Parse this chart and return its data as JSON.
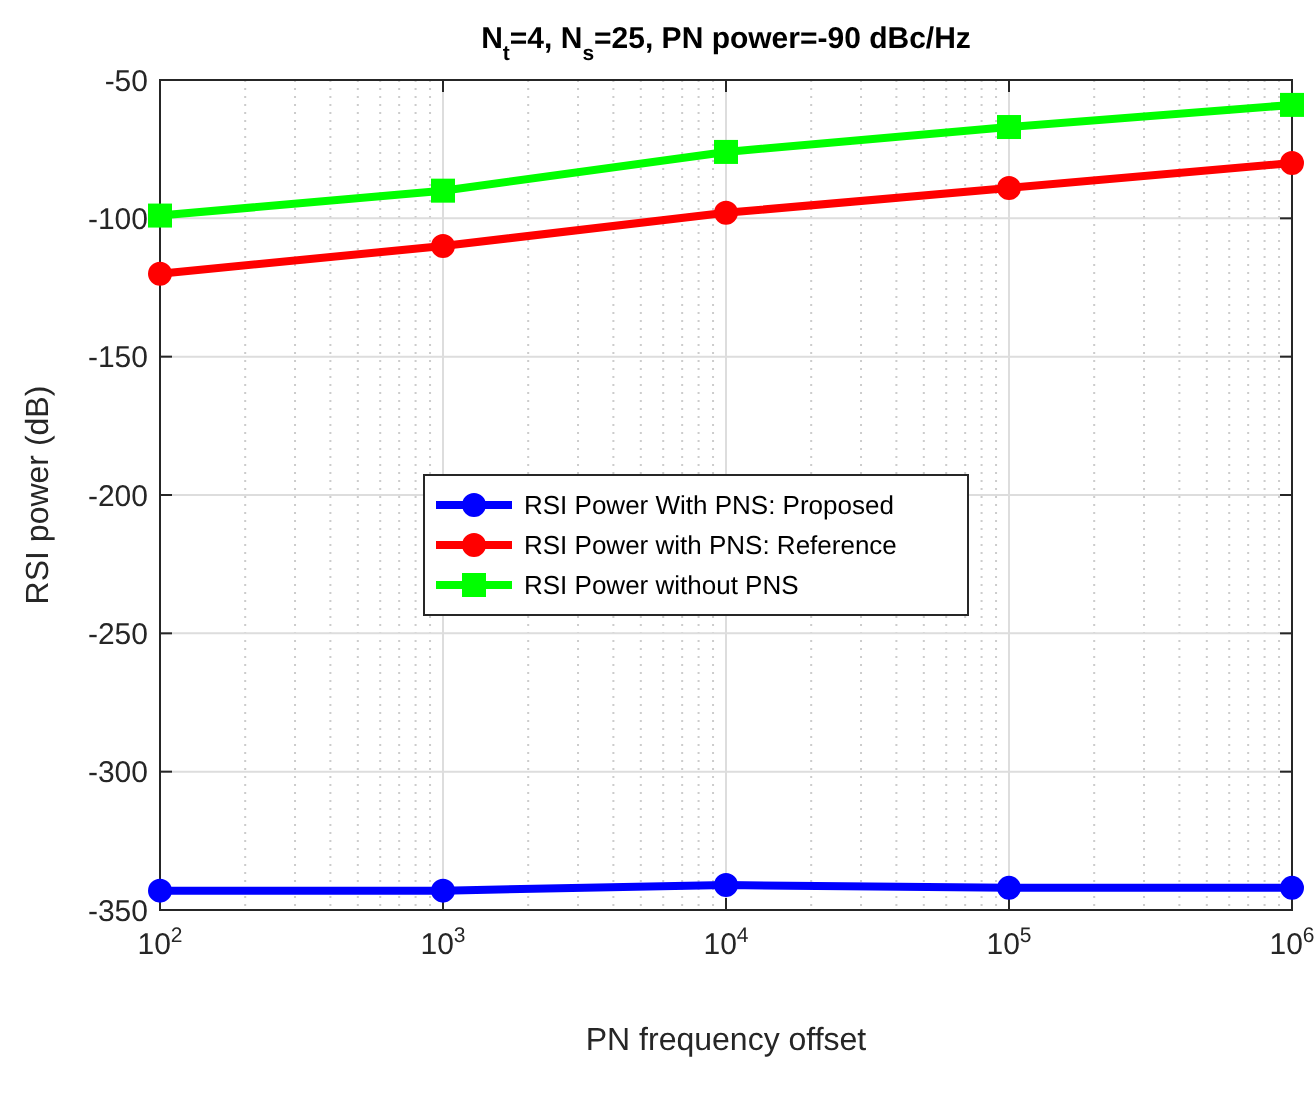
{
  "chart_data": {
    "type": "line",
    "title": "N$_{t}$=4, N$_{s}$=25, PN power=-90 dBc/Hz",
    "xlabel": "PN frequency offset",
    "ylabel": "RSI power (dB)",
    "x": [
      100,
      1000,
      10000,
      100000,
      1000000
    ],
    "log": "x",
    "xlim": [
      100,
      1000000
    ],
    "xticks": [
      {
        "value": 100,
        "label": "10$^{2}$"
      },
      {
        "value": 1000,
        "label": "10$^{3}$"
      },
      {
        "value": 10000,
        "label": "10$^{4}$"
      },
      {
        "value": 100000,
        "label": "10$^{5}$"
      },
      {
        "value": 1000000,
        "label": "10$^{6}$"
      }
    ],
    "ylim": [
      -350,
      -50
    ],
    "yticks": [
      -350,
      -300,
      -250,
      -200,
      -150,
      -100,
      -50
    ],
    "grid": true,
    "legend": "center",
    "line_style": "solid",
    "series": [
      {
        "name": "RSI Power With PNS: Proposed",
        "color": "#0000ff",
        "marker": "circle",
        "values": [
          -343,
          -343,
          -341,
          -342,
          -342
        ]
      },
      {
        "name": "RSI Power with PNS: Reference",
        "color": "#ff0000",
        "marker": "circle",
        "values": [
          -120,
          -110,
          -98,
          -89,
          -80
        ]
      },
      {
        "name": "RSI Power without PNS",
        "color": "#00ff00",
        "marker": "square",
        "values": [
          -99,
          -90,
          -76,
          -67,
          -59
        ]
      }
    ]
  }
}
